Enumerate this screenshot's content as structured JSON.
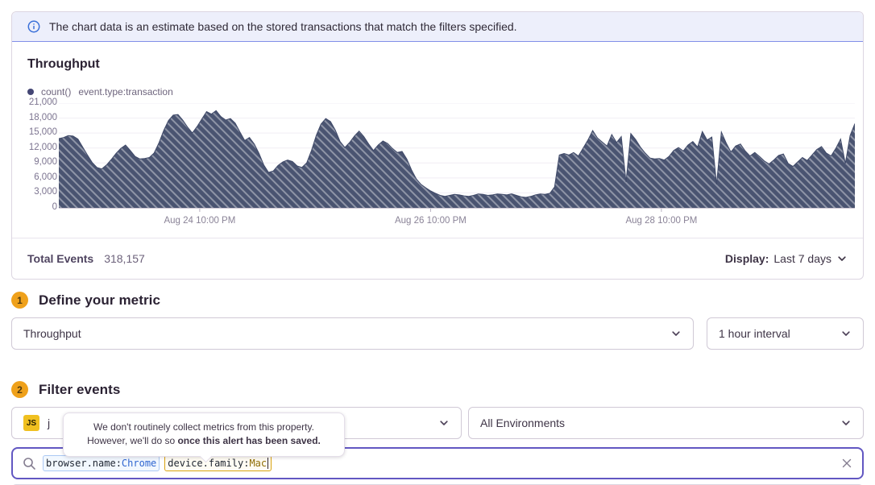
{
  "banner": {
    "text": "The chart data is an estimate based on the stored transactions that match the filters specified."
  },
  "chart": {
    "title": "Throughput",
    "legend": {
      "series_label": "count()",
      "filter_label": "event.type:transaction"
    },
    "footer": {
      "total_label": "Total Events",
      "total_value": "318,157",
      "display_label": "Display:",
      "display_value": "Last 7 days"
    }
  },
  "chart_data": {
    "type": "area",
    "title": "Throughput",
    "style": "hatched-area",
    "color": "#4a5471",
    "grid": true,
    "legend_position": "top-left",
    "ylim": [
      0,
      21000
    ],
    "y_ticks": [
      0,
      3000,
      6000,
      9000,
      12000,
      15000,
      18000,
      21000
    ],
    "x_tick_labels": [
      "Aug 24 10:00 PM",
      "Aug 26 10:00 PM",
      "Aug 28 10:00 PM"
    ],
    "x_tick_positions": [
      0.177,
      0.467,
      0.757
    ],
    "series": [
      {
        "name": "count()",
        "values": [
          13900,
          14100,
          14500,
          14400,
          13800,
          12200,
          10600,
          9100,
          8100,
          7800,
          8600,
          9700,
          10900,
          11900,
          12600,
          11500,
          10300,
          9800,
          9900,
          10100,
          11000,
          13000,
          15500,
          17500,
          18600,
          18700,
          17600,
          16200,
          15000,
          16300,
          17800,
          19300,
          18800,
          19500,
          18300,
          17600,
          17900,
          17000,
          15200,
          13500,
          14100,
          12800,
          10900,
          8600,
          7100,
          7400,
          8500,
          9200,
          9600,
          9300,
          8400,
          8100,
          9000,
          11500,
          14500,
          16800,
          17900,
          17300,
          15600,
          13300,
          12100,
          13100,
          14400,
          15400,
          14300,
          12800,
          11500,
          12600,
          13400,
          12900,
          11900,
          11100,
          11300,
          9800,
          7600,
          5800,
          4700,
          4000,
          3400,
          2900,
          2500,
          2300,
          2500,
          2700,
          2600,
          2400,
          2300,
          2500,
          2800,
          2700,
          2500,
          2600,
          2800,
          2700,
          2600,
          2800,
          2500,
          2200,
          2100,
          2300,
          2600,
          2800,
          2700,
          2900,
          4200,
          10600,
          10900,
          10600,
          11100,
          10400,
          12000,
          13600,
          15500,
          14000,
          13200,
          12400,
          14700,
          13100,
          14300,
          5200,
          14900,
          13700,
          12200,
          11000,
          10000,
          9800,
          9900,
          9600,
          10300,
          11500,
          12100,
          11400,
          12600,
          13300,
          12200,
          15300,
          13600,
          14200,
          4700,
          15200,
          13000,
          11200,
          12400,
          12800,
          11400,
          10400,
          11100,
          10300,
          9400,
          8800,
          9600,
          10500,
          10800,
          8900,
          8300,
          9200,
          10100,
          9500,
          10600,
          11700,
          12300,
          11000,
          10400,
          11900,
          13800,
          8900,
          14500,
          16900
        ]
      }
    ]
  },
  "sections": [
    {
      "number": "1",
      "title": "Define your metric"
    },
    {
      "number": "2",
      "title": "Filter events"
    }
  ],
  "metric": {
    "selected": "Throughput",
    "interval": "1 hour interval"
  },
  "filter": {
    "project_platform": "JS",
    "project_visible_text": "j",
    "environment": "All Environments"
  },
  "tooltip": {
    "line1": "We don't routinely collect metrics from this property.",
    "line2_normal": "However, we'll do so ",
    "line2_bold": "once this alert has been saved."
  },
  "search": {
    "tokens": [
      {
        "key": "browser.name:",
        "value": "Chrome"
      },
      {
        "key": "device.family:",
        "value": "Mac"
      }
    ]
  },
  "colors": {
    "accent_purple": "#6257c2",
    "banner_bg": "#edeffb",
    "banner_border": "#8290e8",
    "info_blue": "#3a70d9",
    "badge_amber": "#efa11b",
    "chart_fill": "#4a5471",
    "token_blue_border": "#abc9f4",
    "token_blue_value": "#2f66d0",
    "token_amber_border": "#d9a311",
    "token_amber_value": "#8f6d07"
  }
}
